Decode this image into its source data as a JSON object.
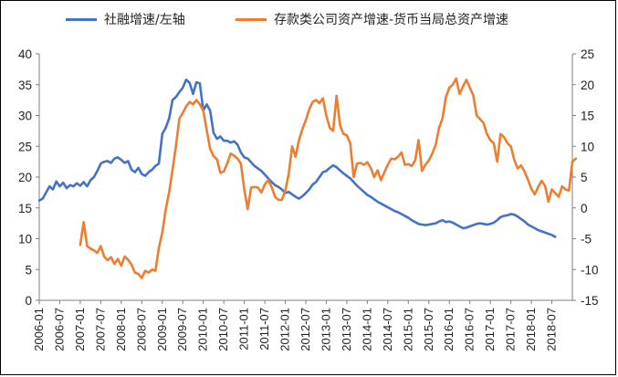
{
  "chart_data": {
    "type": "line",
    "x_tick_labels": [
      "2006-01",
      "2006-07",
      "2007-01",
      "2007-07",
      "2008-01",
      "2008-07",
      "2009-01",
      "2009-07",
      "2010-01",
      "2010-07",
      "2011-01",
      "2011-07",
      "2012-01",
      "2012-07",
      "2013-01",
      "2013-07",
      "2014-01",
      "2014-07",
      "2015-01",
      "2015-07",
      "2016-01",
      "2016-07",
      "2017-01",
      "2017-07",
      "2018-01",
      "2018-07"
    ],
    "x_range": [
      "2006-01",
      "2018-12"
    ],
    "y_left": {
      "range": [
        0,
        40
      ],
      "ticks": [
        "0",
        "5",
        "10",
        "15",
        "20",
        "25",
        "30",
        "35",
        "40"
      ]
    },
    "y_right": {
      "range": [
        -15,
        25
      ],
      "ticks": [
        "-15",
        "-10",
        "-5",
        "0",
        "5",
        "10",
        "15",
        "20",
        "25"
      ]
    },
    "grid": false,
    "legend_position": "top",
    "series": [
      {
        "name": "社融增速/左轴",
        "axis": "left",
        "color": "#4472C4",
        "start": "2006-01",
        "step": "monthly",
        "values": [
          16.2,
          16.5,
          17.5,
          18.5,
          18.0,
          19.3,
          18.5,
          19.1,
          18.2,
          18.7,
          18.5,
          19.0,
          18.6,
          19.2,
          18.5,
          19.5,
          20.0,
          21.0,
          22.2,
          22.5,
          22.6,
          22.3,
          23.0,
          23.2,
          22.8,
          22.3,
          22.6,
          21.2,
          20.8,
          21.5,
          20.5,
          20.2,
          20.8,
          21.2,
          21.8,
          22.2,
          27.0,
          28.0,
          29.5,
          32.5,
          33.0,
          33.8,
          34.5,
          35.8,
          35.3,
          33.5,
          35.4,
          35.2,
          30.8,
          31.8,
          30.8,
          27.2,
          26.2,
          26.6,
          25.9,
          25.9,
          25.6,
          25.8,
          25.3,
          24.0,
          23.2,
          23.0,
          22.4,
          21.8,
          21.4,
          21.0,
          20.4,
          19.8,
          19.2,
          18.7,
          18.4,
          18.0,
          17.4,
          17.6,
          17.2,
          16.8,
          16.5,
          16.9,
          17.4,
          18.0,
          18.8,
          19.2,
          20.0,
          20.8,
          21.0,
          21.5,
          21.9,
          21.6,
          21.1,
          20.6,
          20.2,
          19.8,
          19.2,
          18.6,
          18.1,
          17.6,
          17.1,
          16.8,
          16.4,
          16.0,
          15.7,
          15.4,
          15.1,
          14.8,
          14.5,
          14.3,
          14.0,
          13.7,
          13.4,
          13.0,
          12.7,
          12.4,
          12.3,
          12.2,
          12.3,
          12.4,
          12.5,
          12.8,
          13.0,
          12.7,
          12.8,
          12.6,
          12.3,
          12.0,
          11.7,
          11.8,
          12.0,
          12.2,
          12.4,
          12.5,
          12.4,
          12.3,
          12.4,
          12.6,
          13.0,
          13.5,
          13.7,
          13.8,
          14.0,
          13.9,
          13.6,
          13.2,
          12.8,
          12.3,
          12.0,
          11.7,
          11.4,
          11.2,
          11.0,
          10.8,
          10.6,
          10.3
        ]
      },
      {
        "name": "存款类公司资产增速-货币当局总资产增速",
        "axis": "right",
        "color": "#ED7D31",
        "start": "2007-01",
        "step": "monthly",
        "values": [
          -6.0,
          -2.3,
          -6.2,
          -6.6,
          -6.9,
          -7.3,
          -6.2,
          -7.9,
          -8.5,
          -8.0,
          -9.1,
          -8.3,
          -9.4,
          -7.9,
          -8.4,
          -9.2,
          -10.5,
          -10.7,
          -11.4,
          -10.2,
          -10.5,
          -10.0,
          -10.2,
          -6.5,
          -4.0,
          -0.3,
          2.5,
          6.2,
          10.0,
          14.5,
          15.4,
          16.5,
          17.2,
          16.8,
          17.5,
          16.8,
          15.8,
          12.6,
          9.6,
          8.4,
          7.9,
          5.7,
          5.9,
          7.2,
          8.8,
          8.5,
          8.0,
          7.2,
          3.0,
          -0.2,
          3.3,
          3.4,
          3.3,
          2.5,
          3.8,
          4.5,
          3.4,
          1.8,
          1.3,
          1.3,
          2.8,
          5.5,
          10.0,
          8.3,
          11.0,
          12.8,
          14.2,
          16.0,
          17.2,
          17.5,
          17.0,
          17.8,
          15.0,
          13.0,
          12.5,
          18.2,
          13.5,
          12.0,
          11.8,
          10.5,
          5.0,
          7.2,
          7.3,
          7.0,
          7.4,
          6.5,
          5.0,
          6.1,
          4.5,
          5.8,
          7.0,
          8.0,
          7.9,
          8.3,
          9.0,
          7.0,
          7.1,
          6.8,
          7.7,
          11.0,
          6.0,
          7.0,
          7.7,
          8.8,
          10.2,
          13.0,
          14.5,
          18.0,
          19.5,
          20.0,
          21.0,
          18.5,
          19.7,
          20.8,
          19.5,
          18.3,
          15.0,
          14.4,
          13.8,
          12.0,
          11.0,
          10.5,
          7.5,
          12.0,
          11.5,
          10.5,
          10.0,
          7.8,
          6.4,
          6.9,
          5.9,
          4.6,
          3.1,
          2.2,
          3.4,
          4.4,
          3.6,
          1.0,
          3.0,
          2.4,
          1.8,
          3.5,
          3.0,
          2.8,
          7.5,
          8.0
        ]
      }
    ]
  }
}
